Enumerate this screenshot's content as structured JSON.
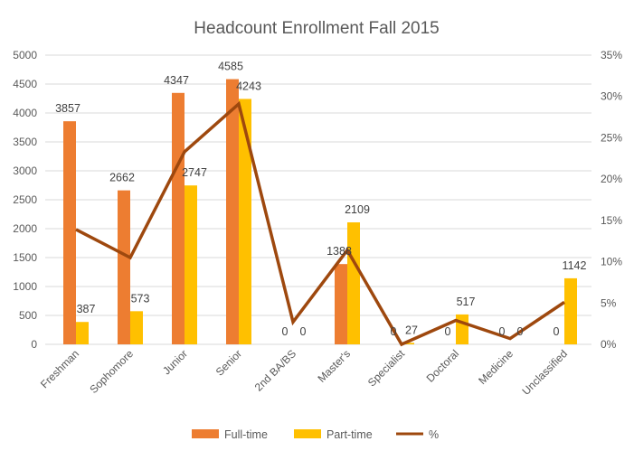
{
  "chart_data": {
    "type": "bar",
    "title": "Headcount Enrollment Fall 2015",
    "categories": [
      "Freshman",
      "Sophomore",
      "Junior",
      "Senior",
      "2nd BA/BS",
      "Master's",
      "Specialist",
      "Doctoral",
      "Medicine",
      "Unclassified"
    ],
    "series": [
      {
        "name": "Full-time",
        "type": "bar",
        "axis": "left",
        "color": "#ED7D31",
        "values": [
          3857,
          2662,
          4347,
          4585,
          0,
          1388,
          0,
          0,
          0,
          0
        ],
        "labels": [
          "3857",
          "2662",
          "4347",
          "4585",
          "0",
          "1388",
          "0",
          "0",
          "0",
          "0"
        ]
      },
      {
        "name": "Part-time",
        "type": "bar",
        "axis": "left",
        "color": "#FFC000",
        "values": [
          387,
          573,
          2747,
          4243,
          0,
          2109,
          27,
          517,
          0,
          1142
        ],
        "labels": [
          "387",
          "573",
          "2747",
          "4243",
          "0",
          "2109",
          "27",
          "517",
          "0",
          "1142"
        ]
      },
      {
        "name": "%",
        "type": "line",
        "axis": "right",
        "color": "#9E480E",
        "values": [
          13.9,
          10.5,
          23.3,
          29.1,
          2.7,
          11.4,
          0.0,
          2.9,
          0.7,
          5.1
        ]
      }
    ],
    "ylim": [
      0,
      5000
    ],
    "yticks": [
      "0",
      "500",
      "1000",
      "1500",
      "2000",
      "2500",
      "3000",
      "3500",
      "4000",
      "4500",
      "5000"
    ],
    "y2lim": [
      0,
      35
    ],
    "y2ticks": [
      "0%",
      "5%",
      "10%",
      "15%",
      "20%",
      "25%",
      "30%",
      "35%"
    ],
    "grid": true,
    "legend": "bottom"
  }
}
